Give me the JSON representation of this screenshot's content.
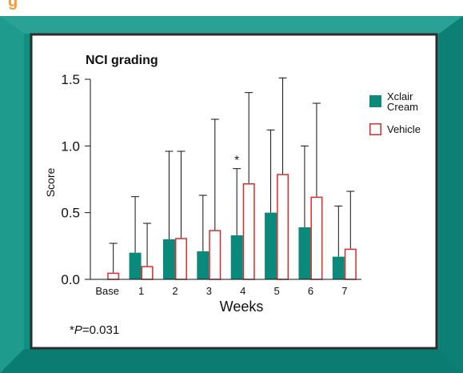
{
  "top_strip_text": "g                                     ",
  "colors": {
    "frame": "#0e8f82",
    "frame_dark": "#0a6e64",
    "frame_light": "#3fb3a6",
    "panel_border": "#2d2d2d",
    "panel_bg": "#ffffff",
    "xclair": "#0b8a7b",
    "vehicle_edge": "#e0292b",
    "vehicle_fill": "#ffffff",
    "errorbar": "#111111",
    "top_strip": "#f39c34"
  },
  "chart_data": {
    "type": "bar",
    "title": "NCI grading",
    "xlabel": "Weeks",
    "ylabel": "Score",
    "ylim": [
      0,
      1.5
    ],
    "yticks": [
      0.0,
      0.5,
      1.0,
      1.5
    ],
    "ytick_labels": [
      "0.0",
      "0.5",
      "1.0",
      "1.5"
    ],
    "categories": [
      "Base",
      "1",
      "2",
      "3",
      "4",
      "5",
      "6",
      "7"
    ],
    "series": [
      {
        "name": "Xclair Cream",
        "legend_lines": [
          "Xclair",
          "Cream"
        ],
        "values": [
          null,
          0.2,
          0.3,
          0.21,
          0.33,
          0.5,
          0.39,
          0.17
        ],
        "error_upper": [
          null,
          0.62,
          0.96,
          0.63,
          0.83,
          1.12,
          1.0,
          0.55
        ]
      },
      {
        "name": "Vehicle",
        "legend_lines": [
          "Vehicle"
        ],
        "values": [
          0.05,
          0.1,
          0.31,
          0.37,
          0.72,
          0.79,
          0.62,
          0.23
        ],
        "error_upper": [
          0.27,
          0.42,
          0.96,
          1.2,
          1.4,
          1.51,
          1.32,
          0.66
        ]
      }
    ],
    "annotations": [
      {
        "text": "*",
        "category": "4",
        "series": "Xclair Cream"
      }
    ],
    "legend": "right",
    "grid": false
  },
  "footnote": {
    "star": "*",
    "p": "P",
    "rest": "=0.031"
  }
}
